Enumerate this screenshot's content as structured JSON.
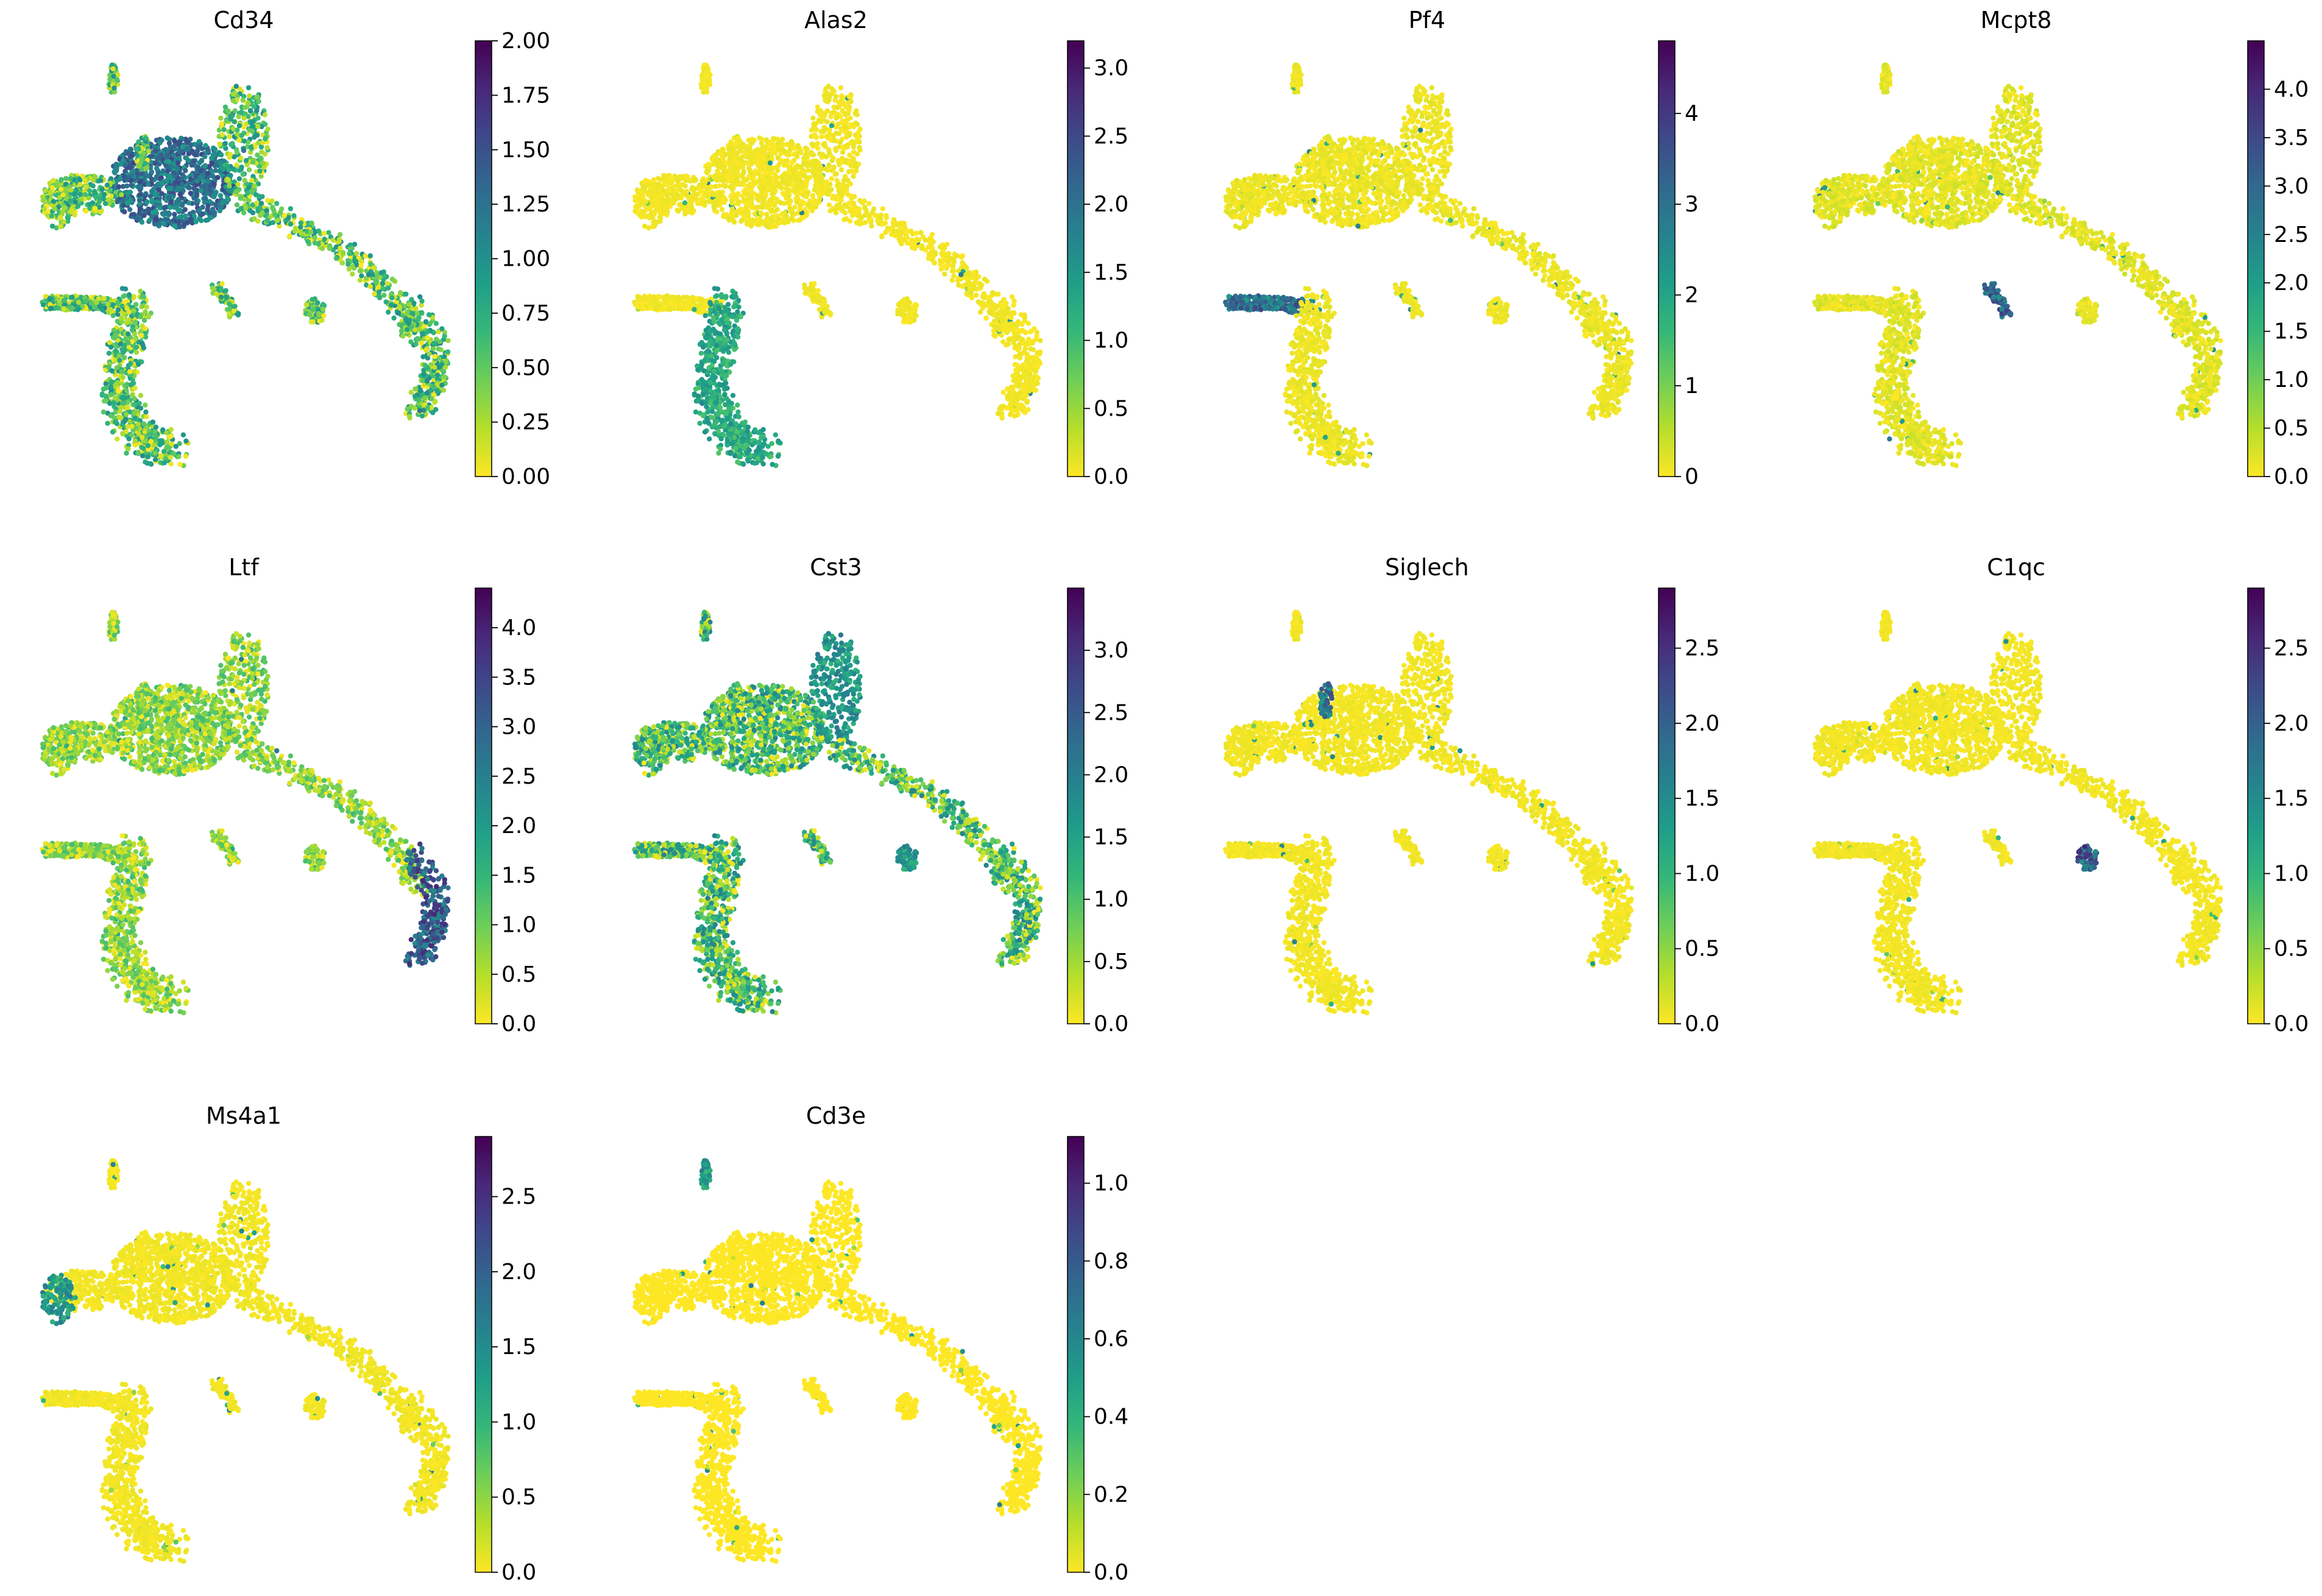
{
  "figure": {
    "colormap_name": "viridis_r",
    "colormap_stops": [
      "#fde725",
      "#b5de2b",
      "#6ece58",
      "#35b779",
      "#1f9e89",
      "#26828e",
      "#31688e",
      "#3e4989",
      "#482878",
      "#440154"
    ],
    "background_color": "#ffffff"
  },
  "chart_data": [
    {
      "type": "scatter",
      "title": "Cd34",
      "colorbar": {
        "min": 0,
        "max": 2.0,
        "ticks": [
          "0.00",
          "0.25",
          "0.50",
          "0.75",
          "1.00",
          "1.25",
          "1.50",
          "1.75",
          "2.00"
        ]
      },
      "expression_base": 0.32,
      "hotspots": [
        {
          "region": "upper-center",
          "level": 0.8
        }
      ]
    },
    {
      "type": "scatter",
      "title": "Alas2",
      "colorbar": {
        "min": 0,
        "max": 3.2,
        "ticks": [
          "0.0",
          "0.5",
          "1.0",
          "1.5",
          "2.0",
          "2.5",
          "3.0"
        ]
      },
      "expression_base": 0.02,
      "hotspots": [
        {
          "region": "lower-stem",
          "level": 0.5
        }
      ]
    },
    {
      "type": "scatter",
      "title": "Pf4",
      "colorbar": {
        "min": 0,
        "max": 4.8,
        "ticks": [
          "0",
          "1",
          "2",
          "3",
          "4"
        ]
      },
      "expression_base": 0.03,
      "hotspots": [
        {
          "region": "left-horizontal-arm",
          "level": 0.8
        }
      ]
    },
    {
      "type": "scatter",
      "title": "Mcpt8",
      "colorbar": {
        "min": 0,
        "max": 4.5,
        "ticks": [
          "0.0",
          "0.5",
          "1.0",
          "1.5",
          "2.0",
          "2.5",
          "3.0",
          "3.5",
          "4.0"
        ]
      },
      "expression_base": 0.05,
      "hotspots": [
        {
          "region": "center-streak",
          "level": 0.85
        }
      ]
    },
    {
      "type": "scatter",
      "title": "Ltf",
      "colorbar": {
        "min": 0,
        "max": 4.4,
        "ticks": [
          "0.0",
          "0.5",
          "1.0",
          "1.5",
          "2.0",
          "2.5",
          "3.0",
          "3.5",
          "4.0"
        ]
      },
      "expression_base": 0.2,
      "hotspots": [
        {
          "region": "right-hook-end",
          "level": 0.9
        }
      ]
    },
    {
      "type": "scatter",
      "title": "Cst3",
      "colorbar": {
        "min": 0,
        "max": 3.5,
        "ticks": [
          "0.0",
          "0.5",
          "1.0",
          "1.5",
          "2.0",
          "2.5",
          "3.0"
        ]
      },
      "expression_base": 0.35,
      "hotspots": [
        {
          "region": "upper-right-lobe",
          "level": 0.6
        },
        {
          "region": "right-small-cluster",
          "level": 0.6
        }
      ]
    },
    {
      "type": "scatter",
      "title": "Siglech",
      "colorbar": {
        "min": 0,
        "max": 2.9,
        "ticks": [
          "0.0",
          "0.5",
          "1.0",
          "1.5",
          "2.0",
          "2.5"
        ]
      },
      "expression_base": 0.02,
      "hotspots": [
        {
          "region": "top-small-cluster",
          "level": 0.8
        }
      ]
    },
    {
      "type": "scatter",
      "title": "C1qc",
      "colorbar": {
        "min": 0,
        "max": 2.9,
        "ticks": [
          "0.0",
          "0.5",
          "1.0",
          "1.5",
          "2.0",
          "2.5"
        ]
      },
      "expression_base": 0.02,
      "hotspots": [
        {
          "region": "right-small-cluster",
          "level": 0.9
        }
      ]
    },
    {
      "type": "scatter",
      "title": "Ms4a1",
      "colorbar": {
        "min": 0,
        "max": 2.9,
        "ticks": [
          "0.0",
          "0.5",
          "1.0",
          "1.5",
          "2.0",
          "2.5"
        ]
      },
      "expression_base": 0.02,
      "hotspots": [
        {
          "region": "far-left-cluster",
          "level": 0.6
        }
      ]
    },
    {
      "type": "scatter",
      "title": "Cd3e",
      "colorbar": {
        "min": 0,
        "max": 1.12,
        "ticks": [
          "0.0",
          "0.2",
          "0.4",
          "0.6",
          "0.8",
          "1.0"
        ]
      },
      "expression_base": 0.0,
      "hotspots": [
        {
          "region": "top-tiny-cluster",
          "level": 0.6
        }
      ]
    }
  ]
}
